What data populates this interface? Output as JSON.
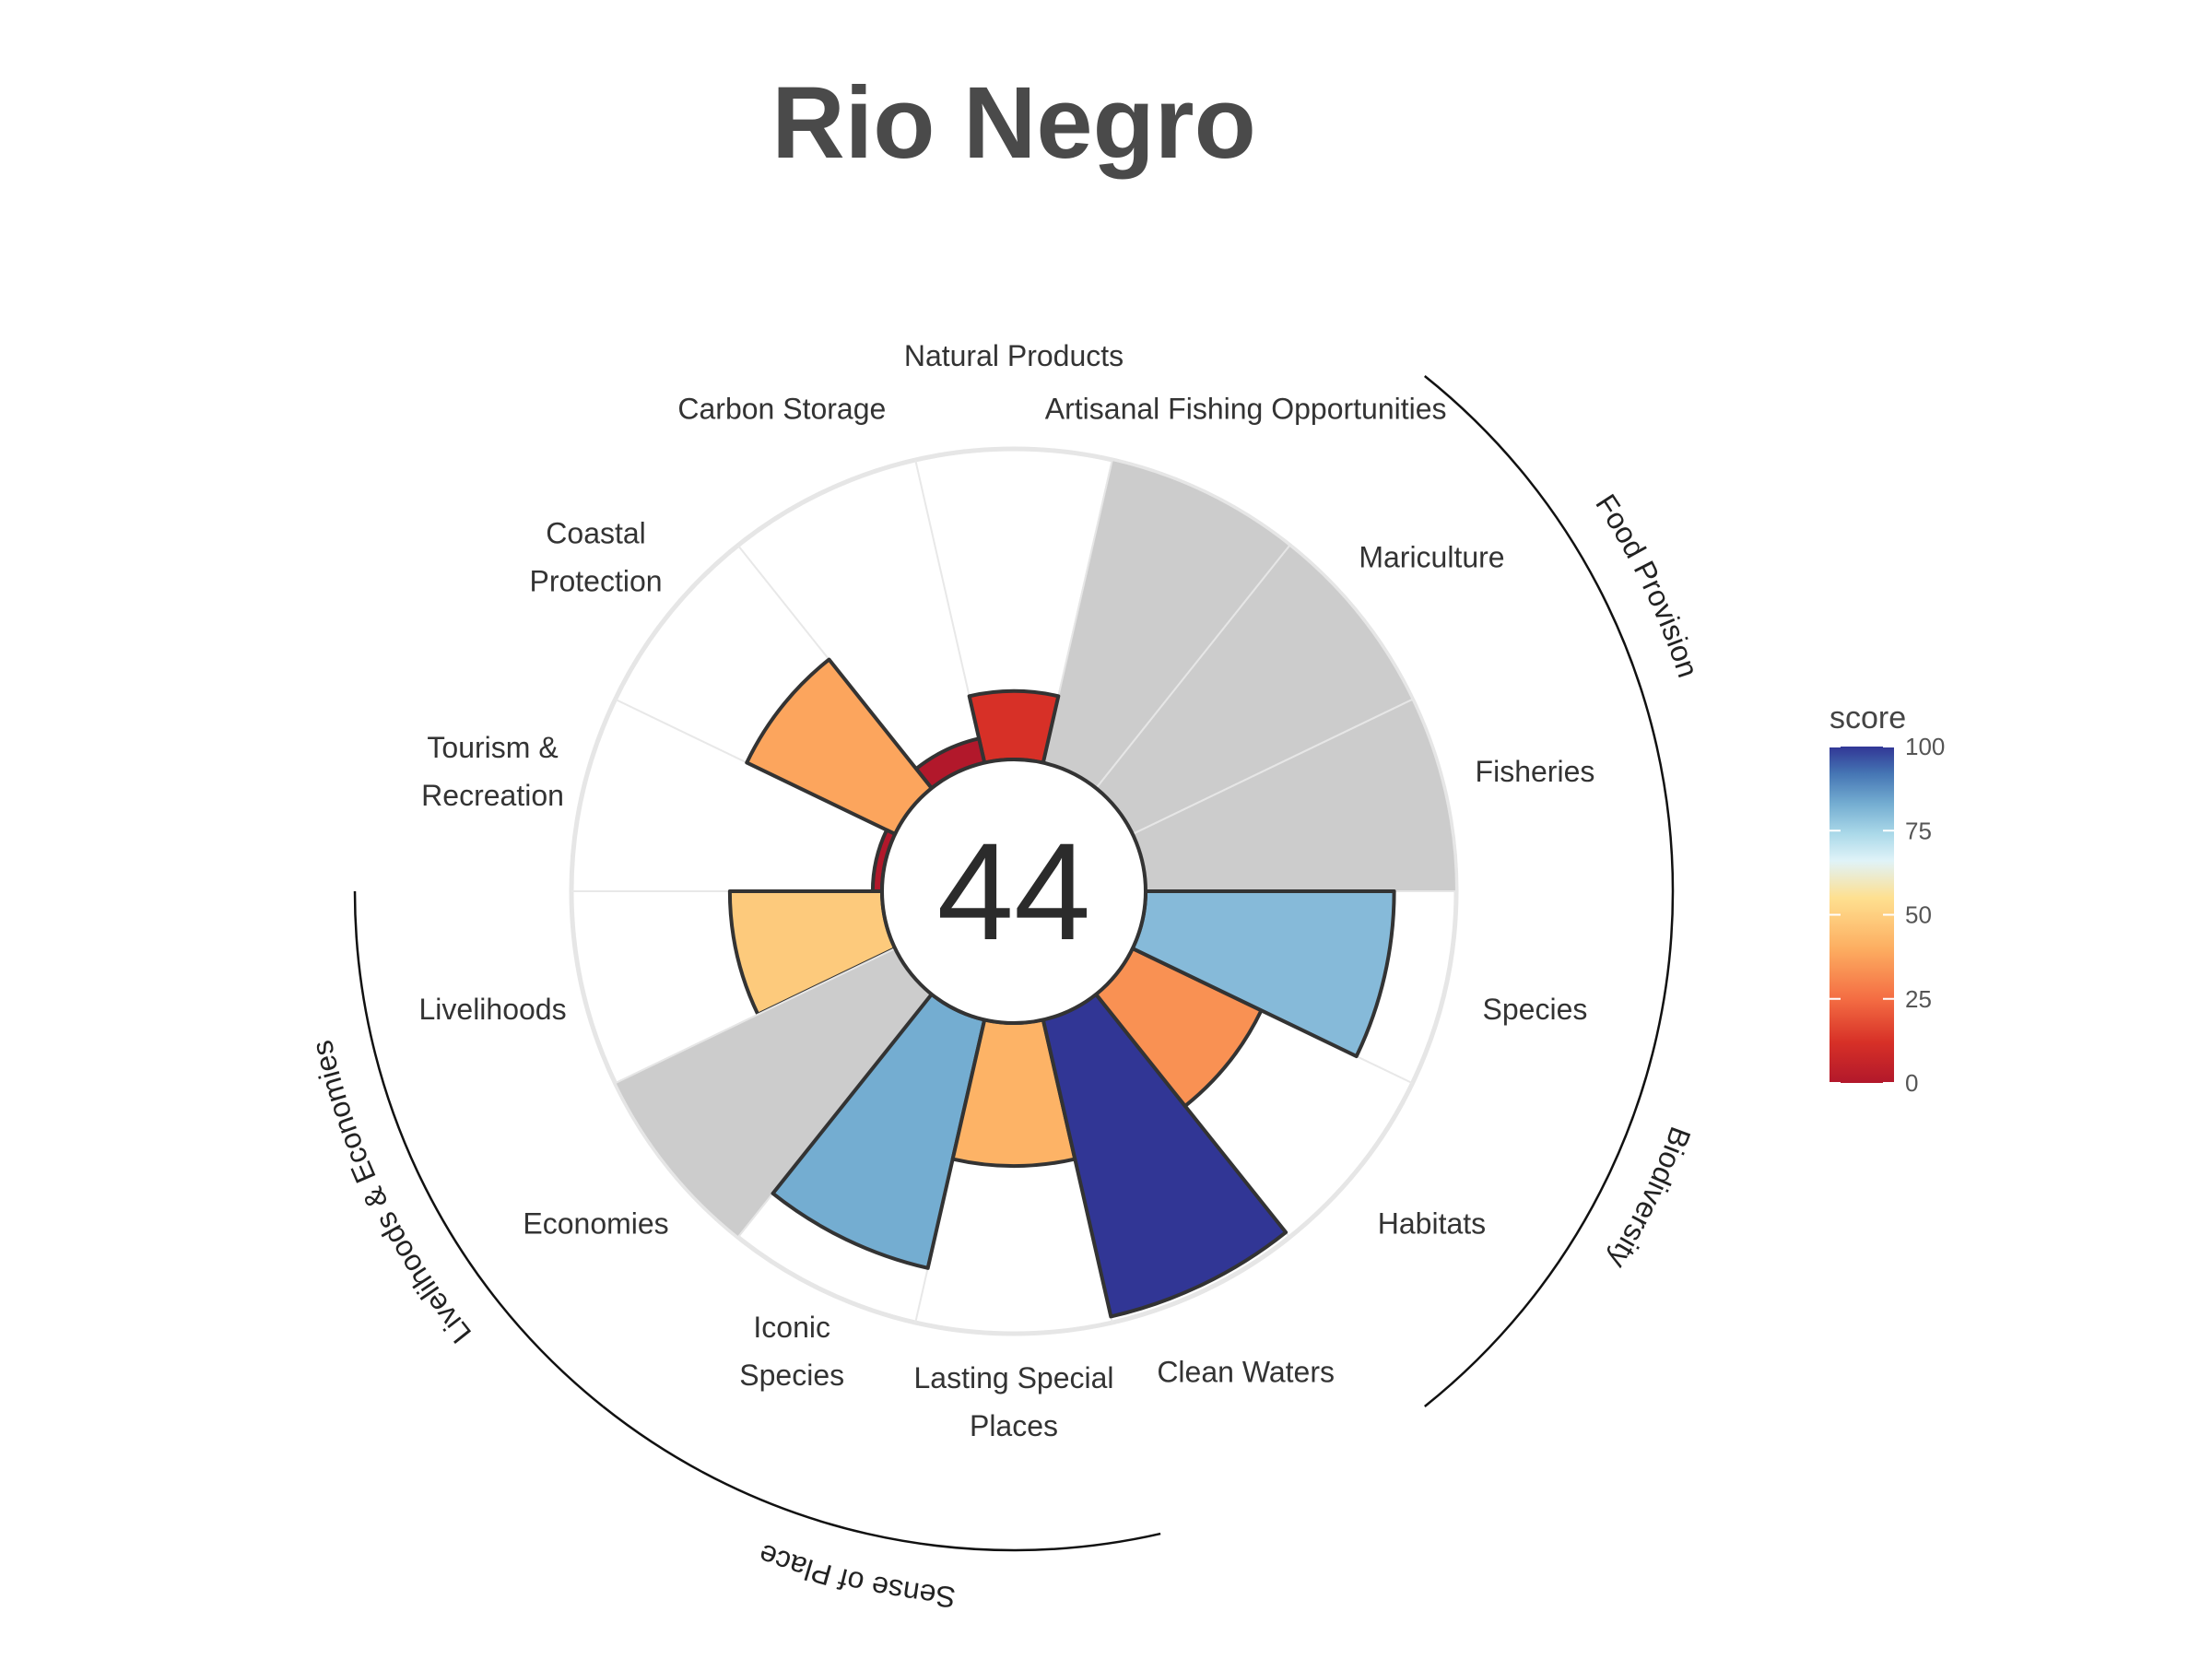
{
  "title": "Rio Negro",
  "chart_data": {
    "type": "polar-bar",
    "title": "Rio Negro",
    "center_score": "44",
    "rlim": [
      0,
      100
    ],
    "legend": {
      "title": "score",
      "ticks": [
        0,
        25,
        50,
        75,
        100
      ],
      "placement": "right"
    },
    "colorscale": [
      "#b2182b",
      "#d73027",
      "#f46d43",
      "#fdae61",
      "#fee090",
      "#e0f3f8",
      "#abd9e9",
      "#74add1",
      "#4575b4",
      "#313695"
    ],
    "na_color": "#cccccc",
    "categories": [
      "Fisheries",
      "Mariculture",
      "Artisanal Fishing Opportunities",
      "Natural Products",
      "Carbon Storage",
      "Coastal Protection",
      "Tourism & Recreation",
      "Livelihoods",
      "Economies",
      "Iconic Species",
      "Lasting Special Places",
      "Clean Waters",
      "Habitats",
      "Species"
    ],
    "label_lines": [
      [
        "Fisheries"
      ],
      [
        "Mariculture"
      ],
      [
        "Artisanal Fishing Opportunities"
      ],
      [
        "Natural Products"
      ],
      [
        "Carbon Storage"
      ],
      [
        "Coastal",
        "Protection"
      ],
      [
        "Tourism &",
        "Recreation"
      ],
      [
        "Livelihoods"
      ],
      [
        "Economies"
      ],
      [
        "Iconic",
        "Species"
      ],
      [
        "Lasting Special",
        "Places"
      ],
      [
        "Clean Waters"
      ],
      [
        "Habitats"
      ],
      [
        "Species"
      ]
    ],
    "values": [
      null,
      null,
      null,
      22,
      8,
      53,
      3,
      49,
      null,
      82,
      46,
      98,
      46,
      80
    ],
    "colors": [
      "#cccccc",
      "#cccccc",
      "#cccccc",
      "#d73027",
      "#b2182b",
      "#fca55d",
      "#b2182b",
      "#fdca7c",
      "#cccccc",
      "#74add1",
      "#fdb366",
      "#313695",
      "#f99153",
      "#86bad9"
    ],
    "groups": [
      {
        "name": "Food Provision",
        "goals": [
          "Fisheries",
          "Mariculture"
        ]
      },
      {
        "name": "Biodiversity",
        "goals": [
          "Species",
          "Habitats"
        ]
      },
      {
        "name": "Sense of Place",
        "goals": [
          "Iconic Species",
          "Lasting Special Places"
        ]
      },
      {
        "name": "Livelihoods & Economies",
        "goals": [
          "Livelihoods",
          "Economies"
        ]
      }
    ]
  }
}
